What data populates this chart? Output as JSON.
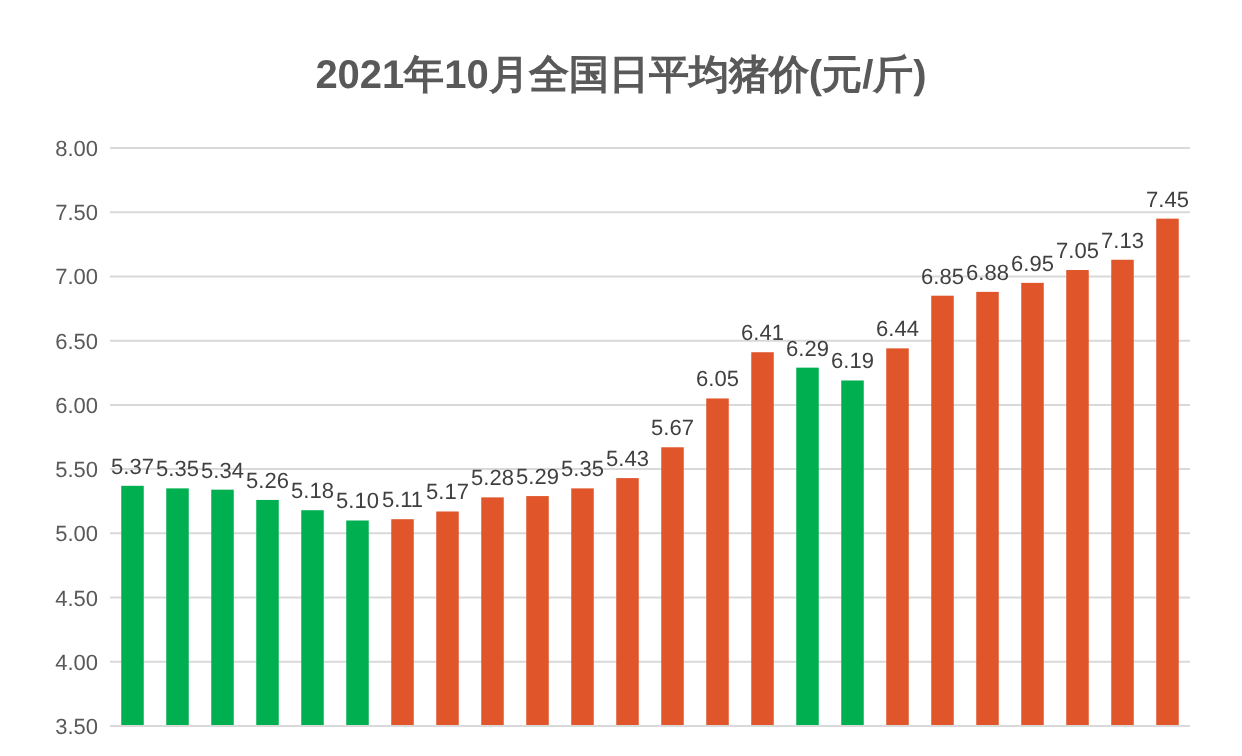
{
  "chart_data": {
    "type": "bar",
    "title": "2021年10月全国日平均猪价(元/斤)",
    "categories": [
      null,
      null,
      null,
      null,
      null,
      null,
      null,
      null,
      null,
      null,
      null,
      null,
      null,
      null,
      null,
      null,
      null,
      null,
      null,
      null,
      null,
      null,
      null,
      null
    ],
    "values": [
      5.37,
      5.35,
      5.34,
      5.26,
      5.18,
      5.1,
      5.11,
      5.17,
      5.28,
      5.29,
      5.35,
      5.43,
      5.67,
      6.05,
      6.41,
      6.29,
      6.19,
      6.44,
      6.85,
      6.88,
      6.95,
      7.05,
      7.13,
      7.45
    ],
    "value_labels": [
      "5.37",
      "5.35",
      "5.34",
      "5.26",
      "5.18",
      "5.10",
      "5.11",
      "5.17",
      "5.28",
      "5.29",
      "5.35",
      "5.43",
      "5.67",
      "6.05",
      "6.41",
      "6.29",
      "6.19",
      "6.44",
      "6.85",
      "6.88",
      "6.95",
      "7.05",
      "7.13",
      "7.45"
    ],
    "colors": [
      "#00b050",
      "#00b050",
      "#00b050",
      "#00b050",
      "#00b050",
      "#00b050",
      "#e0552a",
      "#e0552a",
      "#e0552a",
      "#e0552a",
      "#e0552a",
      "#e0552a",
      "#e0552a",
      "#e0552a",
      "#e0552a",
      "#00b050",
      "#00b050",
      "#e0552a",
      "#e0552a",
      "#e0552a",
      "#e0552a",
      "#e0552a",
      "#e0552a",
      "#e0552a"
    ],
    "ylim": [
      3.5,
      8.0
    ],
    "yticks": [
      {
        "value": 3.5,
        "label": "3.50"
      },
      {
        "value": 4.0,
        "label": "4.00"
      },
      {
        "value": 4.5,
        "label": "4.50"
      },
      {
        "value": 5.0,
        "label": "5.00"
      },
      {
        "value": 5.5,
        "label": "5.50"
      },
      {
        "value": 6.0,
        "label": "6.00"
      },
      {
        "value": 6.5,
        "label": "6.50"
      },
      {
        "value": 7.0,
        "label": "7.00"
      },
      {
        "value": 7.5,
        "label": "7.50"
      },
      {
        "value": 8.0,
        "label": "8.00"
      }
    ],
    "grid": "y"
  }
}
